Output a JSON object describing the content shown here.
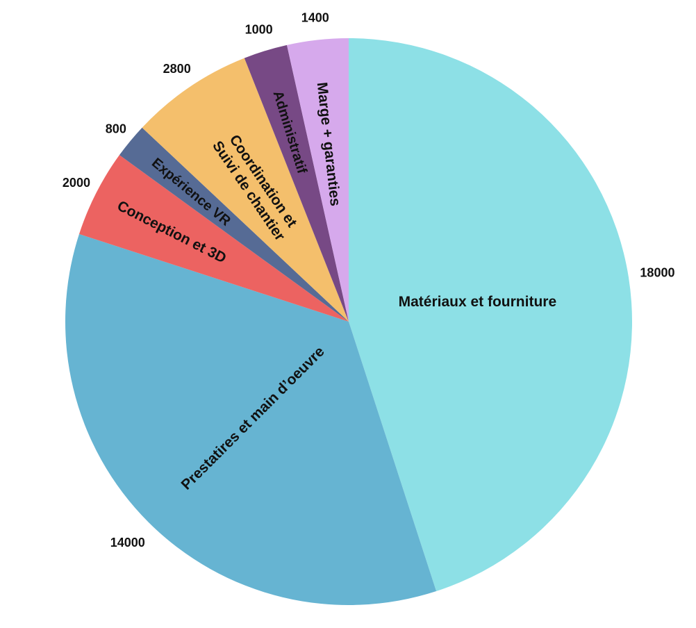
{
  "chart_data": {
    "type": "pie",
    "title": "",
    "slices": [
      {
        "name": "Matériaux et fourniture",
        "value": 18000,
        "color": "#8de0e6"
      },
      {
        "name": "Prestatires et main d’oeuvre",
        "value": 14000,
        "color": "#66b4d2"
      },
      {
        "name": "Conception et 3D",
        "value": 2000,
        "color": "#ec6361"
      },
      {
        "name": "Expérience VR",
        "value": 800,
        "color": "#566b95"
      },
      {
        "name": "Coordination et Suivi de chantier",
        "name_lines": [
          "Coordination et",
          "Suivi de chantier"
        ],
        "value": 2800,
        "color": "#f4bf6c"
      },
      {
        "name": "Administratif",
        "value": 1000,
        "color": "#774985"
      },
      {
        "name": "Marge + garanties",
        "value": 1400,
        "color": "#d6a9ec"
      }
    ]
  }
}
